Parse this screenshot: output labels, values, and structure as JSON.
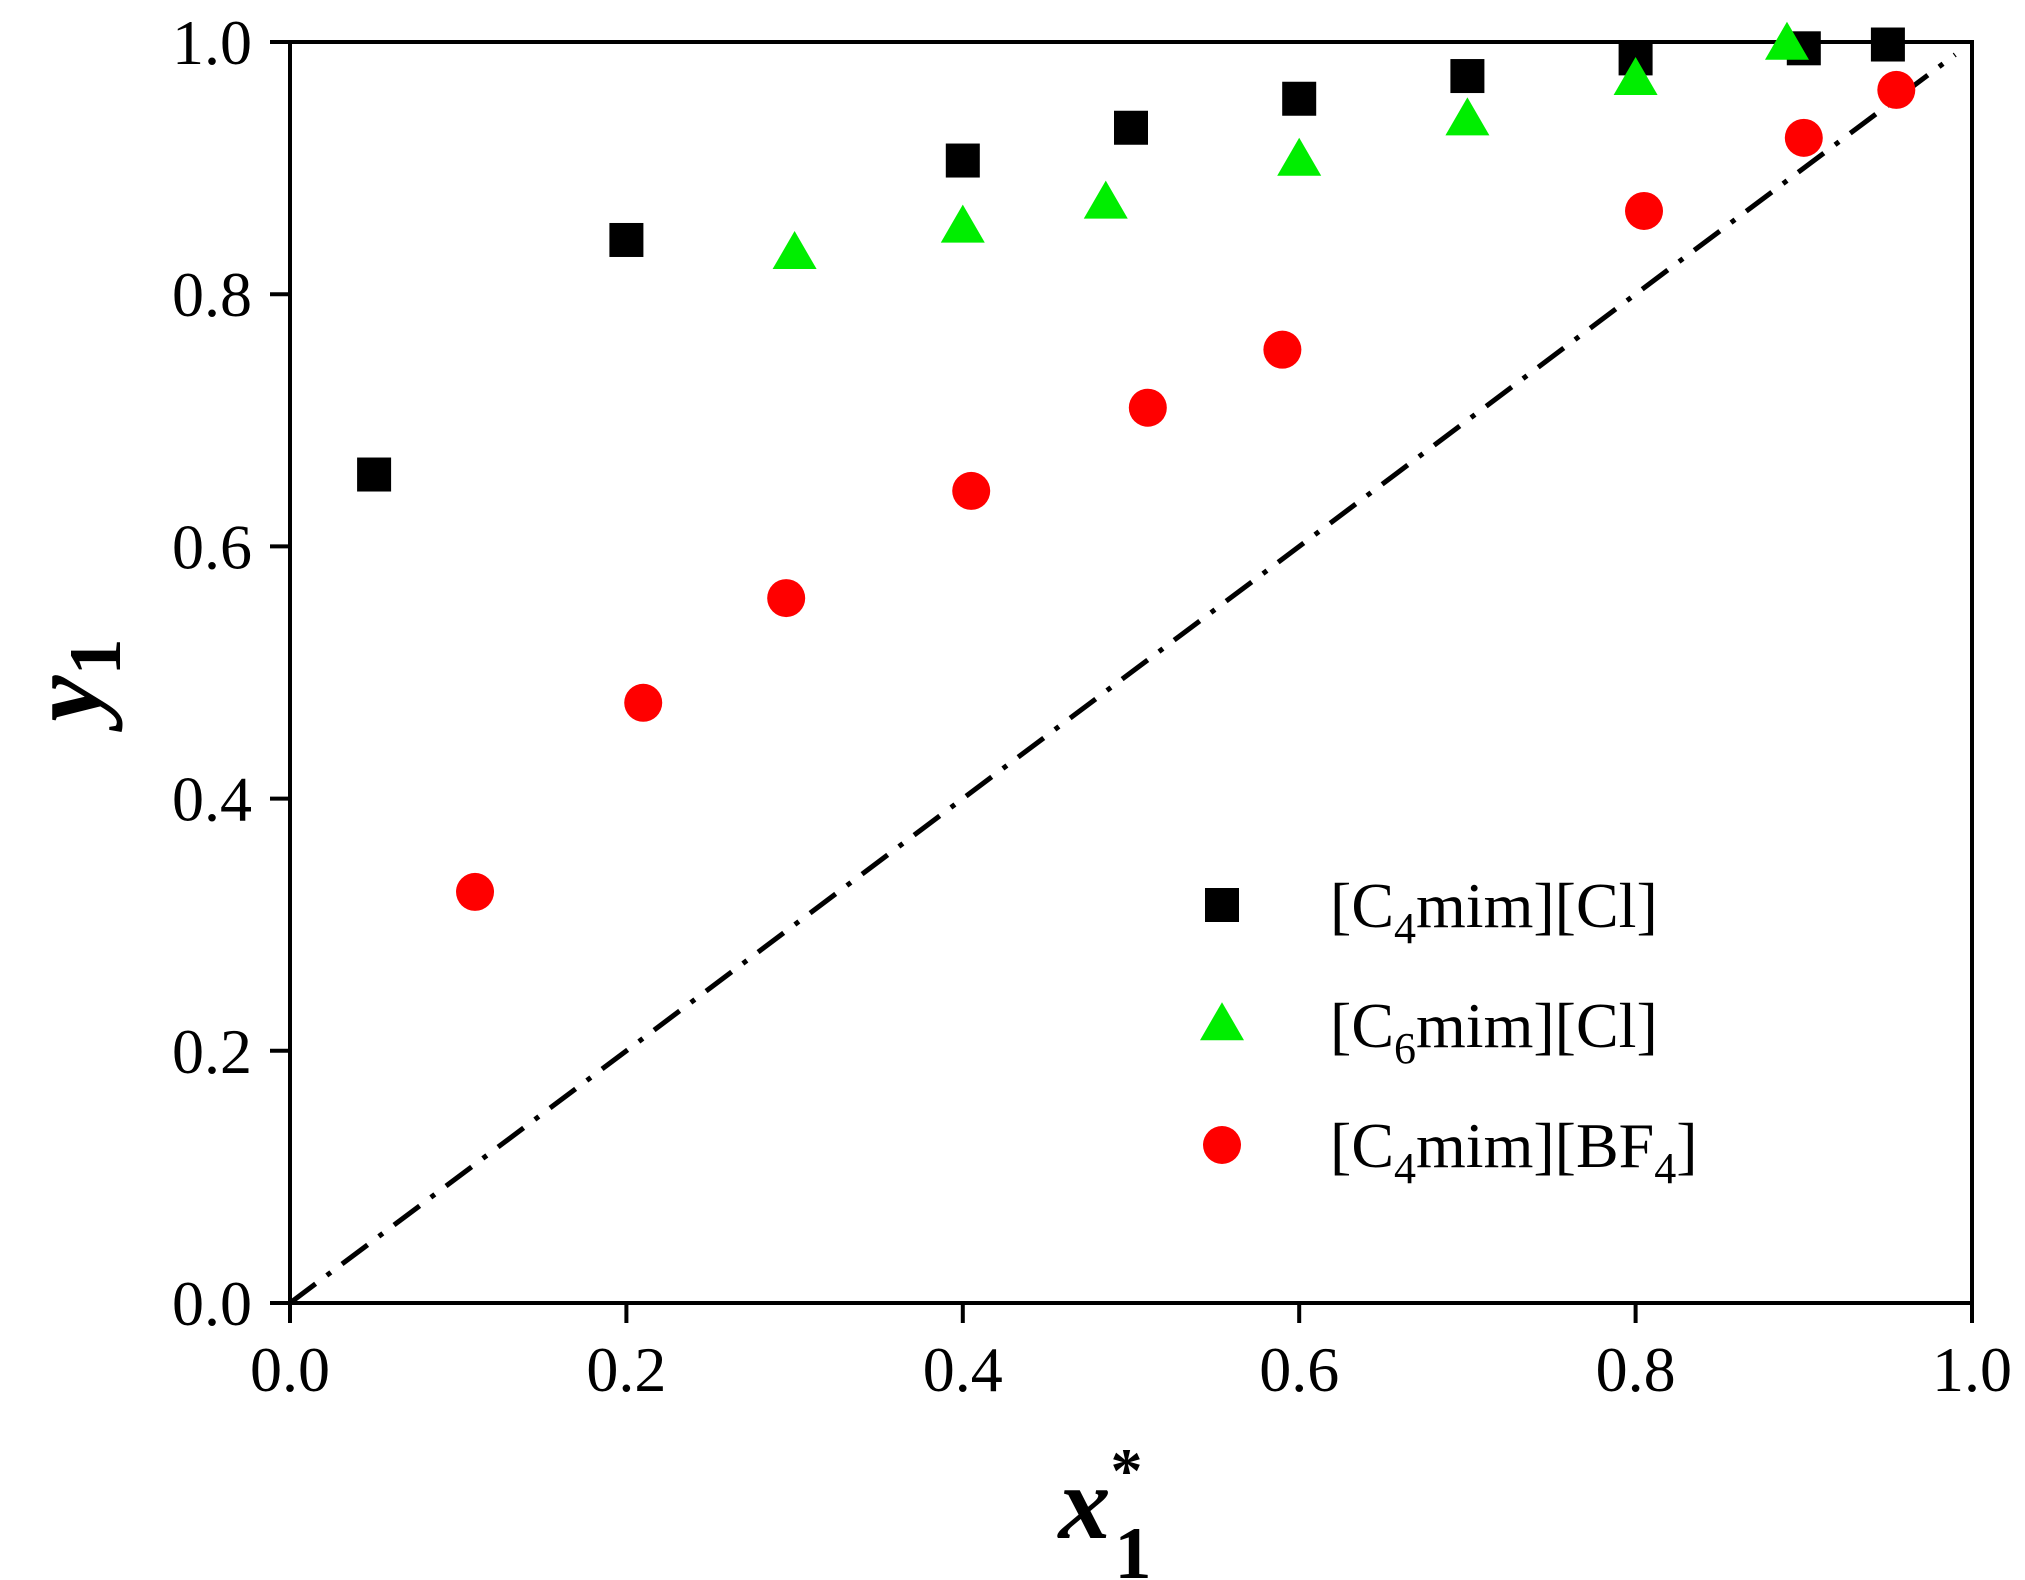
{
  "chart_data": {
    "type": "scatter",
    "title": "",
    "xlabel": {
      "base": "x",
      "sup": "*",
      "sub": "1"
    },
    "ylabel": {
      "base": "y",
      "sub": "1"
    },
    "xlim": [
      0.0,
      1.0
    ],
    "ylim": [
      0.0,
      1.0
    ],
    "grid": false,
    "legend_position": "bottom-right",
    "x_ticks": [
      "0.0",
      "0.2",
      "0.4",
      "0.6",
      "0.8",
      "1.0"
    ],
    "y_ticks": [
      "0.0",
      "0.2",
      "0.4",
      "0.6",
      "0.8",
      "1.0"
    ],
    "reference_line": {
      "name": "y = x",
      "style": "dash-dot",
      "color": "#000000",
      "x": [
        0.0,
        0.99
      ],
      "y": [
        0.0,
        0.99
      ]
    },
    "series": [
      {
        "name": "[C4mim][Cl]",
        "label": {
          "pre": "[C",
          "sub": "4",
          "post": "mim][Cl]"
        },
        "marker": "square",
        "color": "#000000",
        "x": [
          0.05,
          0.2,
          0.4,
          0.5,
          0.6,
          0.7,
          0.8,
          0.9,
          0.95
        ],
        "y": [
          0.657,
          0.843,
          0.906,
          0.932,
          0.955,
          0.973,
          0.987,
          0.995,
          0.998
        ]
      },
      {
        "name": "[C6mim][Cl]",
        "label": {
          "pre": "[C",
          "sub": "6",
          "post": "mim][Cl]"
        },
        "marker": "triangle",
        "color": "#00ee00",
        "x": [
          0.3,
          0.4,
          0.485,
          0.6,
          0.7,
          0.8,
          0.89
        ],
        "y": [
          0.832,
          0.853,
          0.872,
          0.906,
          0.938,
          0.97,
          0.998
        ]
      },
      {
        "name": "[C4mim][BF4]",
        "label": {
          "pre": "[C",
          "sub": "4",
          "post": "mim][BF",
          "sub2": "4",
          "post2": "]"
        },
        "marker": "circle",
        "color": "#ff0000",
        "x": [
          0.11,
          0.21,
          0.295,
          0.405,
          0.51,
          0.59,
          0.805,
          0.9,
          0.955
        ],
        "y": [
          0.326,
          0.476,
          0.559,
          0.644,
          0.71,
          0.756,
          0.866,
          0.924,
          0.962
        ]
      }
    ]
  }
}
